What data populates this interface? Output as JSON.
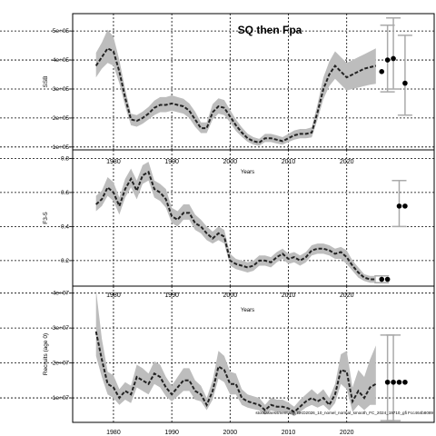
{
  "figure": {
    "title": "SQ then Fpa",
    "footer": "stockassessment.org, BKD2026_10_nomel_normal_smooth_FC_2024_19710_gfi Fcc464b8089",
    "colors": {
      "band": "#bdbdbd",
      "line": "#222222",
      "point": "#000000",
      "errorbar": "#aaaaaa",
      "grid": "#000000"
    }
  },
  "chart_data": [
    {
      "type": "line",
      "ylabel": "SSB",
      "xlabel": "Years",
      "xlim": [
        1973,
        2035
      ],
      "ylim": [
        90000,
        560000
      ],
      "xticks": [
        1980,
        1990,
        2000,
        2010,
        2020
      ],
      "yticks": [
        100000,
        200000,
        300000,
        400000,
        500000
      ],
      "ytick_labels": [
        "1e+05",
        "2e+05",
        "3e+05",
        "4e+05",
        "5e+05"
      ],
      "x": [
        1977,
        1978,
        1979,
        1980,
        1981,
        1982,
        1983,
        1984,
        1985,
        1986,
        1987,
        1988,
        1989,
        1990,
        1991,
        1992,
        1993,
        1994,
        1995,
        1996,
        1997,
        1998,
        1999,
        2000,
        2001,
        2002,
        2003,
        2004,
        2005,
        2006,
        2007,
        2008,
        2009,
        2010,
        2011,
        2012,
        2013,
        2014,
        2015,
        2016,
        2017,
        2018,
        2019,
        2020,
        2021,
        2022,
        2023,
        2024,
        2025
      ],
      "series": [
        {
          "values": [
            380000,
            410000,
            440000,
            430000,
            360000,
            270000,
            195000,
            190000,
            200000,
            215000,
            235000,
            245000,
            245000,
            250000,
            245000,
            240000,
            225000,
            195000,
            165000,
            165000,
            220000,
            240000,
            235000,
            205000,
            175000,
            150000,
            130000,
            120000,
            115000,
            130000,
            130000,
            125000,
            120000,
            130000,
            140000,
            145000,
            145000,
            150000,
            220000,
            300000,
            350000,
            380000,
            360000,
            340000,
            350000,
            360000,
            370000,
            375000,
            380000
          ],
          "lower": [
            340000,
            370000,
            390000,
            380000,
            320000,
            240000,
            175000,
            170000,
            180000,
            195000,
            210000,
            220000,
            220000,
            225000,
            220000,
            215000,
            200000,
            170000,
            148000,
            148000,
            195000,
            215000,
            210000,
            185000,
            155000,
            135000,
            118000,
            108000,
            104000,
            117000,
            117000,
            112000,
            108000,
            117000,
            125000,
            130000,
            130000,
            133000,
            195000,
            265000,
            310000,
            335000,
            315000,
            295000,
            300000,
            305000,
            310000,
            315000,
            318000
          ],
          "upper": [
            425000,
            460000,
            505000,
            480000,
            400000,
            300000,
            215000,
            210000,
            222000,
            238000,
            260000,
            272000,
            272000,
            278000,
            272000,
            266000,
            250000,
            222000,
            185000,
            185000,
            248000,
            268000,
            262000,
            228000,
            195000,
            168000,
            146000,
            134000,
            128000,
            145000,
            145000,
            140000,
            134000,
            145000,
            157000,
            162000,
            162000,
            168000,
            248000,
            340000,
            395000,
            430000,
            410000,
            390000,
            400000,
            410000,
            420000,
            430000,
            440000
          ]
        }
      ],
      "points": [
        {
          "x": 2026,
          "y": 360000
        },
        {
          "x": 2027,
          "y": 400000
        },
        {
          "x": 2028,
          "y": 405000
        },
        {
          "x": 2030,
          "y": 320000
        }
      ],
      "errorbars": [
        {
          "x": 2027,
          "lo": 290000,
          "hi": 520000
        },
        {
          "x": 2028,
          "lo": 300000,
          "hi": 545000
        },
        {
          "x": 2030,
          "lo": 210000,
          "hi": 485000
        }
      ]
    },
    {
      "type": "line",
      "ylabel": "F3-5",
      "xlabel": "Years",
      "xlim": [
        1973,
        2035
      ],
      "ylim": [
        0.05,
        0.85
      ],
      "xticks": [
        1980,
        1990,
        2000,
        2010,
        2020
      ],
      "yticks": [
        0.2,
        0.4,
        0.6,
        0.8
      ],
      "ytick_labels": [
        "0.2",
        "0.4",
        "0.6",
        "0.8"
      ],
      "x": [
        1977,
        1978,
        1979,
        1980,
        1981,
        1982,
        1983,
        1984,
        1985,
        1986,
        1987,
        1988,
        1989,
        1990,
        1991,
        1992,
        1993,
        1994,
        1995,
        1996,
        1997,
        1998,
        1999,
        2000,
        2001,
        2002,
        2003,
        2004,
        2005,
        2006,
        2007,
        2008,
        2009,
        2010,
        2011,
        2012,
        2013,
        2014,
        2015,
        2016,
        2017,
        2018,
        2019,
        2020,
        2021,
        2022,
        2023,
        2024,
        2025
      ],
      "series": [
        {
          "values": [
            0.53,
            0.56,
            0.63,
            0.6,
            0.52,
            0.62,
            0.68,
            0.61,
            0.7,
            0.72,
            0.62,
            0.6,
            0.56,
            0.46,
            0.44,
            0.48,
            0.48,
            0.42,
            0.4,
            0.36,
            0.33,
            0.36,
            0.34,
            0.2,
            0.18,
            0.17,
            0.16,
            0.17,
            0.2,
            0.2,
            0.19,
            0.22,
            0.24,
            0.21,
            0.22,
            0.2,
            0.22,
            0.26,
            0.27,
            0.27,
            0.26,
            0.24,
            0.25,
            0.22,
            0.17,
            0.13,
            0.1,
            0.09,
            0.09
          ],
          "lower": [
            0.49,
            0.52,
            0.58,
            0.55,
            0.47,
            0.57,
            0.63,
            0.56,
            0.65,
            0.67,
            0.57,
            0.55,
            0.51,
            0.42,
            0.4,
            0.44,
            0.44,
            0.38,
            0.36,
            0.32,
            0.3,
            0.32,
            0.3,
            0.17,
            0.15,
            0.14,
            0.13,
            0.14,
            0.17,
            0.17,
            0.16,
            0.19,
            0.21,
            0.18,
            0.19,
            0.17,
            0.19,
            0.23,
            0.24,
            0.24,
            0.23,
            0.21,
            0.21,
            0.18,
            0.14,
            0.1,
            0.08,
            0.07,
            0.07
          ],
          "upper": [
            0.58,
            0.61,
            0.69,
            0.66,
            0.57,
            0.68,
            0.74,
            0.67,
            0.76,
            0.78,
            0.67,
            0.65,
            0.62,
            0.51,
            0.49,
            0.53,
            0.53,
            0.47,
            0.44,
            0.4,
            0.37,
            0.4,
            0.38,
            0.24,
            0.21,
            0.2,
            0.19,
            0.2,
            0.23,
            0.23,
            0.22,
            0.25,
            0.27,
            0.24,
            0.25,
            0.23,
            0.25,
            0.29,
            0.3,
            0.3,
            0.29,
            0.27,
            0.28,
            0.26,
            0.2,
            0.16,
            0.12,
            0.11,
            0.11
          ]
        }
      ],
      "points": [
        {
          "x": 2026,
          "y": 0.09
        },
        {
          "x": 2027,
          "y": 0.09
        },
        {
          "x": 2029,
          "y": 0.52
        },
        {
          "x": 2030,
          "y": 0.52
        }
      ],
      "errorbars": [
        {
          "x": 2029,
          "lo": 0.4,
          "hi": 0.67
        },
        {
          "x": 2026,
          "lo": 0.07,
          "hi": 0.11
        }
      ]
    },
    {
      "type": "line",
      "ylabel": "Recruits (age 0)",
      "xlabel": "Years",
      "xlim": [
        1973,
        2035
      ],
      "ylim": [
        3000000,
        42000000
      ],
      "xticks": [
        1980,
        1990,
        2000,
        2010,
        2020
      ],
      "yticks": [
        10000000,
        20000000,
        30000000,
        40000000
      ],
      "ytick_labels": [
        "1e+07",
        "2e+07",
        "3e+07",
        "4e+07"
      ],
      "x": [
        1977,
        1978,
        1979,
        1980,
        1981,
        1982,
        1983,
        1984,
        1985,
        1986,
        1987,
        1988,
        1989,
        1990,
        1991,
        1992,
        1993,
        1994,
        1995,
        1996,
        1997,
        1998,
        1999,
        2000,
        2001,
        2002,
        2003,
        2004,
        2005,
        2006,
        2007,
        2008,
        2009,
        2010,
        2011,
        2012,
        2013,
        2014,
        2015,
        2016,
        2017,
        2018,
        2019,
        2020,
        2021,
        2022,
        2023,
        2024,
        2025
      ],
      "series": [
        {
          "values": [
            29000000,
            21000000,
            14000000,
            13000000,
            10000000,
            12000000,
            11000000,
            16000000,
            15000000,
            14000000,
            17000000,
            16000000,
            13000000,
            11000000,
            13000000,
            15000000,
            15000000,
            12000000,
            11000000,
            8000000,
            12000000,
            19000000,
            18000000,
            14000000,
            14000000,
            10000000,
            9000000,
            8500000,
            8000000,
            6500000,
            8000000,
            7500000,
            7500000,
            7000000,
            6000000,
            7500000,
            9000000,
            10000000,
            9000000,
            10000000,
            8000000,
            11000000,
            18000000,
            17500000,
            9000000,
            12000000,
            10000000,
            13000000,
            14000000
          ],
          "lower": [
            22000000,
            16000000,
            11000000,
            10000000,
            8000000,
            9500000,
            8500000,
            13000000,
            12000000,
            11000000,
            14000000,
            13000000,
            10500000,
            9000000,
            10500000,
            12000000,
            12000000,
            9500000,
            9000000,
            6500000,
            9500000,
            15500000,
            14500000,
            11000000,
            11000000,
            8000000,
            7200000,
            6800000,
            6400000,
            5200000,
            6400000,
            6000000,
            6000000,
            5600000,
            4800000,
            6000000,
            7200000,
            8000000,
            7200000,
            8000000,
            6400000,
            8500000,
            14000000,
            12500000,
            6000000,
            8000000,
            6500000,
            8000000,
            8000000
          ],
          "upper": [
            41000000,
            27000000,
            17500000,
            16500000,
            12500000,
            14500000,
            13500000,
            19500000,
            18500000,
            17000000,
            20500000,
            19500000,
            16000000,
            13500000,
            16000000,
            18500000,
            18500000,
            15000000,
            13500000,
            10000000,
            15000000,
            23500000,
            22000000,
            17500000,
            17000000,
            12500000,
            11000000,
            10500000,
            10000000,
            8000000,
            10000000,
            9500000,
            9500000,
            8700000,
            7500000,
            9500000,
            11000000,
            12500000,
            11000000,
            12500000,
            10000000,
            14000000,
            22500000,
            23500000,
            13000000,
            18000000,
            16000000,
            21000000,
            25000000
          ]
        }
      ],
      "points": [
        {
          "x": 2027,
          "y": 14500000
        },
        {
          "x": 2028,
          "y": 14500000
        },
        {
          "x": 2029,
          "y": 14500000
        },
        {
          "x": 2030,
          "y": 14500000
        }
      ],
      "errorbars": [
        {
          "x": 2027,
          "lo": 3500000,
          "hi": 28000000
        },
        {
          "x": 2028,
          "lo": 3500000,
          "hi": 28000000
        }
      ]
    }
  ]
}
